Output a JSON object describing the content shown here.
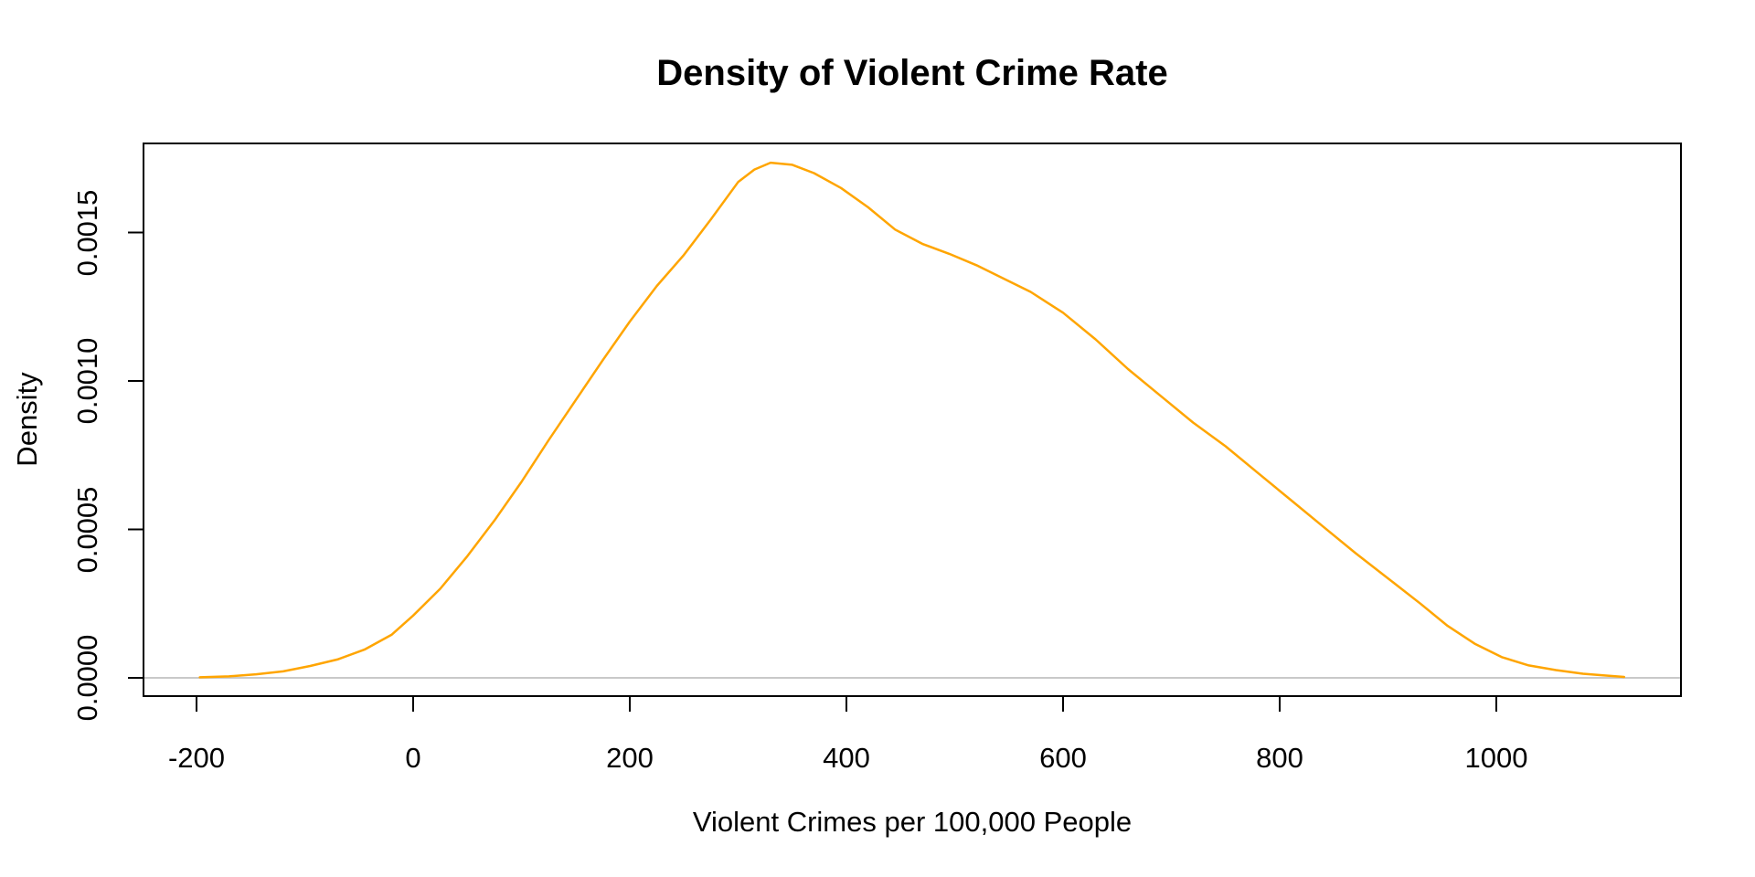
{
  "chart_data": {
    "type": "line",
    "subtype": "kernel-density",
    "title": "Density of Violent Crime Rate",
    "xlabel": "Violent Crimes per 100,000 People",
    "ylabel": "Density",
    "grid": false,
    "legend": false,
    "curve_color": "#FFA500",
    "zero_line_color": "#c9c9c9",
    "box_color": "#000000",
    "xlim": [
      -249,
      1170
    ],
    "ylim": [
      -7e-05,
      0.0018
    ],
    "x_ticks": [
      {
        "value": -200,
        "label": "-200"
      },
      {
        "value": 0,
        "label": "0"
      },
      {
        "value": 200,
        "label": "200"
      },
      {
        "value": 400,
        "label": "400"
      },
      {
        "value": 600,
        "label": "600"
      },
      {
        "value": 800,
        "label": "800"
      },
      {
        "value": 1000,
        "label": "1000"
      }
    ],
    "y_ticks": [
      {
        "value": 0.0,
        "label": "0.0000"
      },
      {
        "value": 0.0005,
        "label": "0.0005"
      },
      {
        "value": 0.001,
        "label": "0.0010"
      },
      {
        "value": 0.0015,
        "label": "0.0015"
      }
    ],
    "series": [
      {
        "name": "density",
        "color": "#FFA500",
        "points": [
          [
            -197,
            2e-06
          ],
          [
            -170,
            5e-06
          ],
          [
            -145,
            1.2e-05
          ],
          [
            -120,
            2.2e-05
          ],
          [
            -95,
            4e-05
          ],
          [
            -70,
            6.2e-05
          ],
          [
            -45,
            9.5e-05
          ],
          [
            -20,
            0.000145
          ],
          [
            0,
            0.00021
          ],
          [
            25,
            0.0003
          ],
          [
            50,
            0.00041
          ],
          [
            75,
            0.00053
          ],
          [
            100,
            0.00066
          ],
          [
            125,
            0.0008
          ],
          [
            150,
            0.000935
          ],
          [
            175,
            0.00107
          ],
          [
            200,
            0.0012
          ],
          [
            225,
            0.00132
          ],
          [
            250,
            0.001425
          ],
          [
            275,
            0.001545
          ],
          [
            300,
            0.00167
          ],
          [
            315,
            0.001712
          ],
          [
            330,
            0.001735
          ],
          [
            350,
            0.001728
          ],
          [
            370,
            0.0017
          ],
          [
            395,
            0.00165
          ],
          [
            420,
            0.001585
          ],
          [
            445,
            0.00151
          ],
          [
            470,
            0.001462
          ],
          [
            495,
            0.001428
          ],
          [
            520,
            0.00139
          ],
          [
            545,
            0.001345
          ],
          [
            570,
            0.0013
          ],
          [
            600,
            0.00123
          ],
          [
            630,
            0.00114
          ],
          [
            660,
            0.00104
          ],
          [
            690,
            0.00095
          ],
          [
            720,
            0.00086
          ],
          [
            750,
            0.00078
          ],
          [
            780,
            0.00069
          ],
          [
            810,
            0.0006
          ],
          [
            840,
            0.00051
          ],
          [
            870,
            0.00042
          ],
          [
            900,
            0.000335
          ],
          [
            930,
            0.00025
          ],
          [
            955,
            0.000175
          ],
          [
            980,
            0.000115
          ],
          [
            1005,
            7e-05
          ],
          [
            1030,
            4.2e-05
          ],
          [
            1055,
            2.6e-05
          ],
          [
            1080,
            1.4e-05
          ],
          [
            1100,
            8e-06
          ],
          [
            1118,
            3e-06
          ]
        ]
      }
    ]
  }
}
